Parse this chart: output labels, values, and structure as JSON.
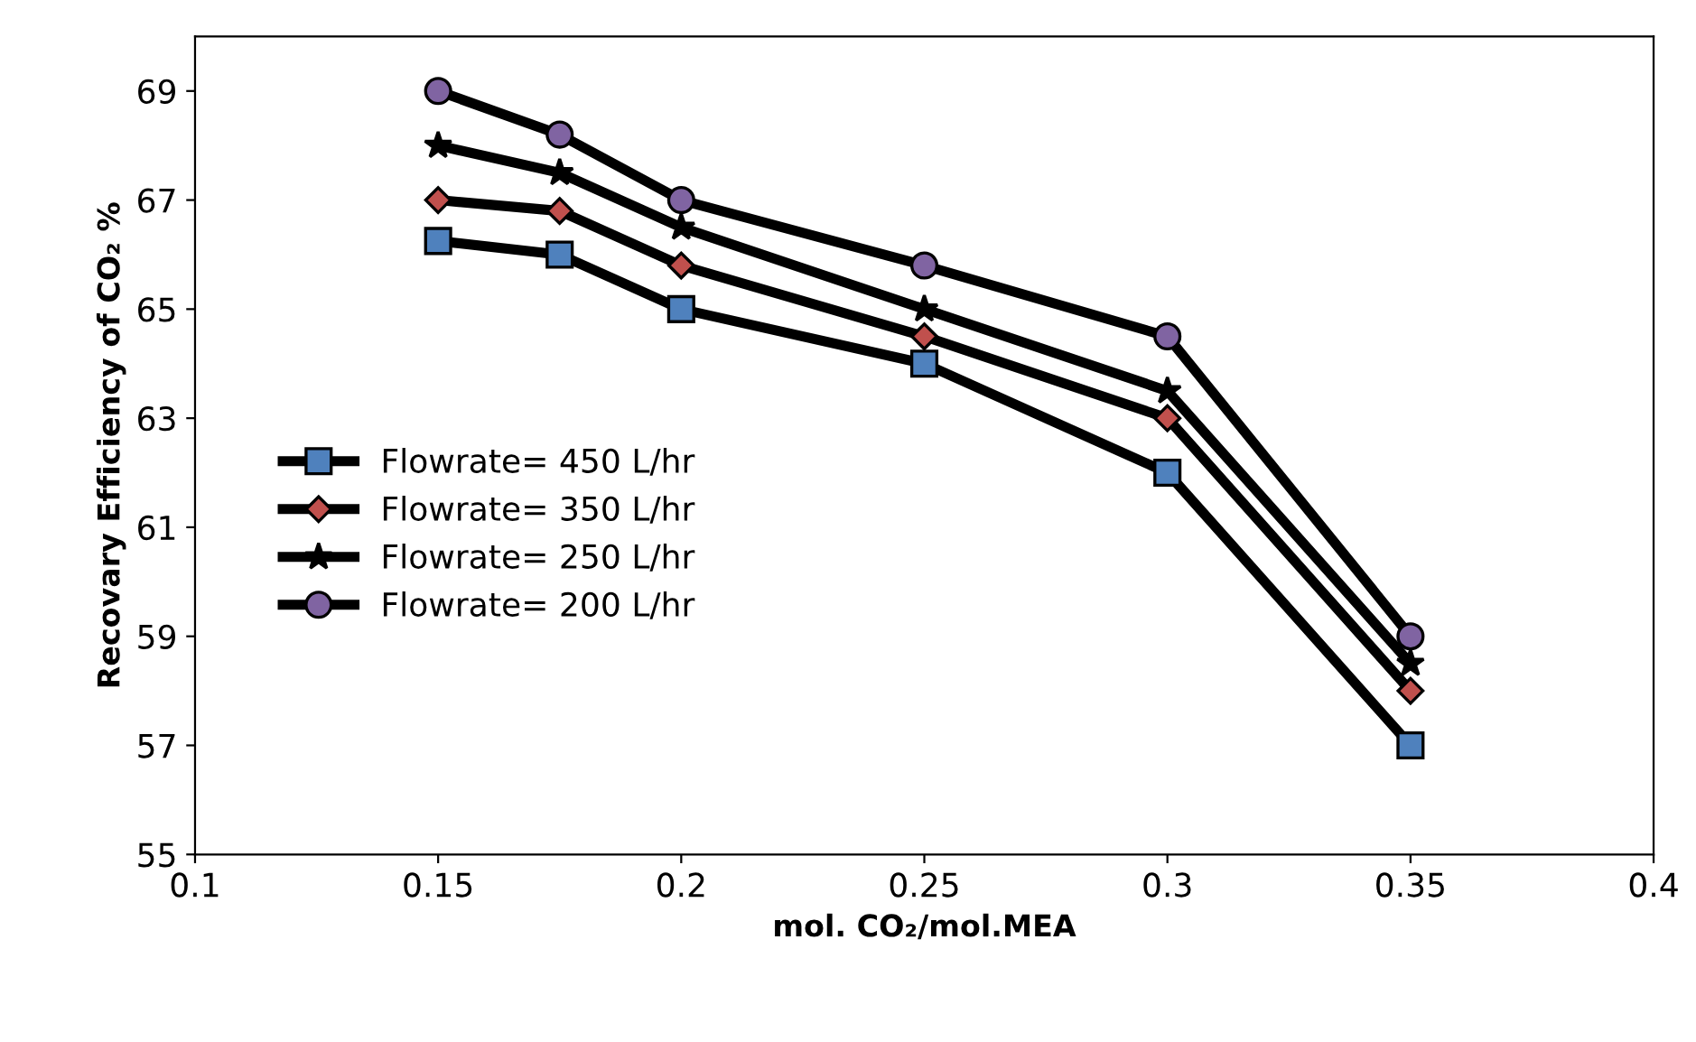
{
  "chart_data": {
    "type": "line",
    "xlabel": "mol. CO₂/mol.MEA",
    "ylabel": "Recovary Efficiency of CO₂ %",
    "x": [
      0.15,
      0.175,
      0.2,
      0.25,
      0.3,
      0.35
    ],
    "series": [
      {
        "name": "Flowrate= 450 L/hr",
        "color": "#4f81bd",
        "marker": "square",
        "values": [
          66.25,
          66,
          65,
          64,
          62,
          57
        ]
      },
      {
        "name": "Flowrate= 350 L/hr",
        "color": "#c0504d",
        "marker": "diamond",
        "values": [
          67,
          66.8,
          65.8,
          64.5,
          63,
          58
        ]
      },
      {
        "name": "Flowrate= 250 L/hr",
        "color": "#000000",
        "marker": "star",
        "values": [
          68,
          67.5,
          66.5,
          65,
          63.5,
          58.5
        ]
      },
      {
        "name": "Flowrate= 200 L/hr",
        "color": "#8064a2",
        "marker": "circle",
        "values": [
          69,
          68.2,
          67,
          65.8,
          64.5,
          59
        ]
      }
    ],
    "xlim": [
      0.1,
      0.4
    ],
    "xticks": [
      0.1,
      0.15,
      0.2,
      0.25,
      0.3,
      0.35,
      0.4
    ],
    "ylim": [
      55,
      70
    ],
    "yticks": [
      55,
      57,
      59,
      61,
      63,
      65,
      67,
      69
    ],
    "grid": false,
    "legend": "left",
    "line_style": "solid"
  }
}
